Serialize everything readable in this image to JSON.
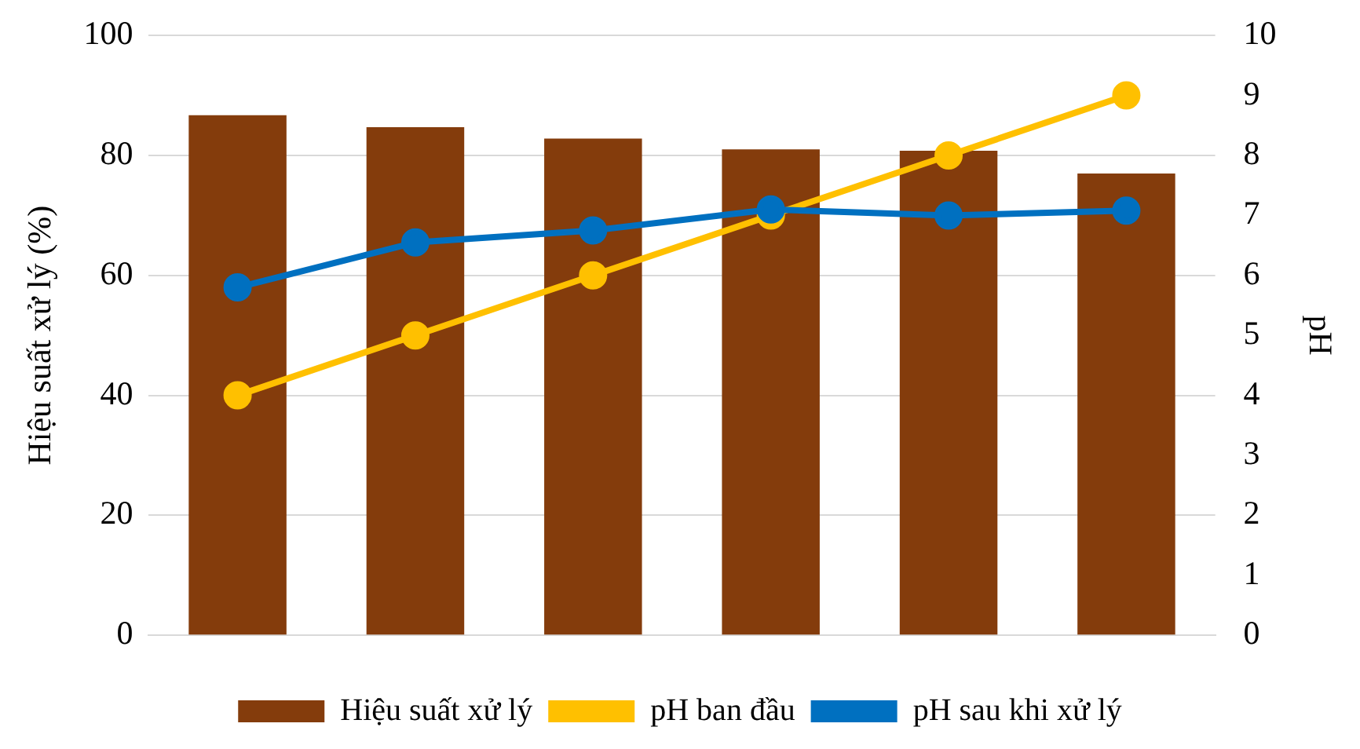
{
  "chart_data": {
    "type": "bar",
    "ylabel": "Hiệu suất xử lý (%)",
    "y2label": "pH",
    "categories": [
      null,
      null,
      null,
      null,
      null,
      null
    ],
    "series": [
      {
        "name": "Hiệu suất xử lý",
        "color": "#843c0c",
        "values": [
          86.7,
          84.7,
          82.8,
          81.0,
          80.8,
          77.0
        ]
      },
      {
        "name": "pH ban đầu",
        "type": "line",
        "axis": "y2",
        "color": "#ffc000",
        "marker": "circle",
        "values": [
          4,
          5,
          6,
          7,
          8,
          9
        ]
      },
      {
        "name": "pH sau khi xử lý",
        "type": "line",
        "axis": "y2",
        "color": "#0070c0",
        "marker": "circle",
        "values": [
          5.8,
          6.55,
          6.75,
          7.1,
          7.0,
          7.08
        ]
      }
    ],
    "ylim": [
      0,
      100
    ],
    "yticks": [
      0,
      20,
      40,
      60,
      80,
      100
    ],
    "y2lim": [
      0,
      10
    ],
    "y2ticks": [
      0,
      1,
      2,
      3,
      4,
      5,
      6,
      7,
      8,
      9,
      10
    ],
    "grid": "y",
    "legend": "bottom"
  }
}
